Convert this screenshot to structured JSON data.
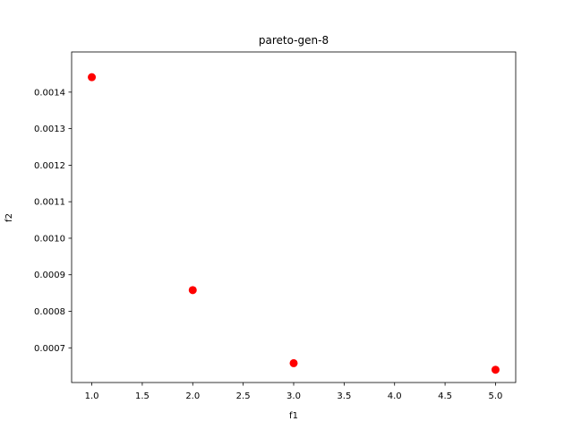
{
  "chart_data": {
    "type": "scatter",
    "title": "pareto-gen-8",
    "xlabel": "f1",
    "ylabel": "f2",
    "xlim": [
      0.8,
      5.2
    ],
    "ylim": [
      0.000605,
      0.00151
    ],
    "xticks": [
      "1.0",
      "1.5",
      "2.0",
      "2.5",
      "3.0",
      "3.5",
      "4.0",
      "4.5",
      "5.0"
    ],
    "yticks": [
      "0.0007",
      "0.0008",
      "0.0009",
      "0.0010",
      "0.0011",
      "0.0012",
      "0.0013",
      "0.0014"
    ],
    "grid": false,
    "marker_color": "#ff0000",
    "series": [
      {
        "points": [
          {
            "x": 1.0,
            "y": 0.001441
          },
          {
            "x": 2.0,
            "y": 0.000858
          },
          {
            "x": 3.0,
            "y": 0.000658
          },
          {
            "x": 5.0,
            "y": 0.00064
          }
        ]
      }
    ]
  }
}
